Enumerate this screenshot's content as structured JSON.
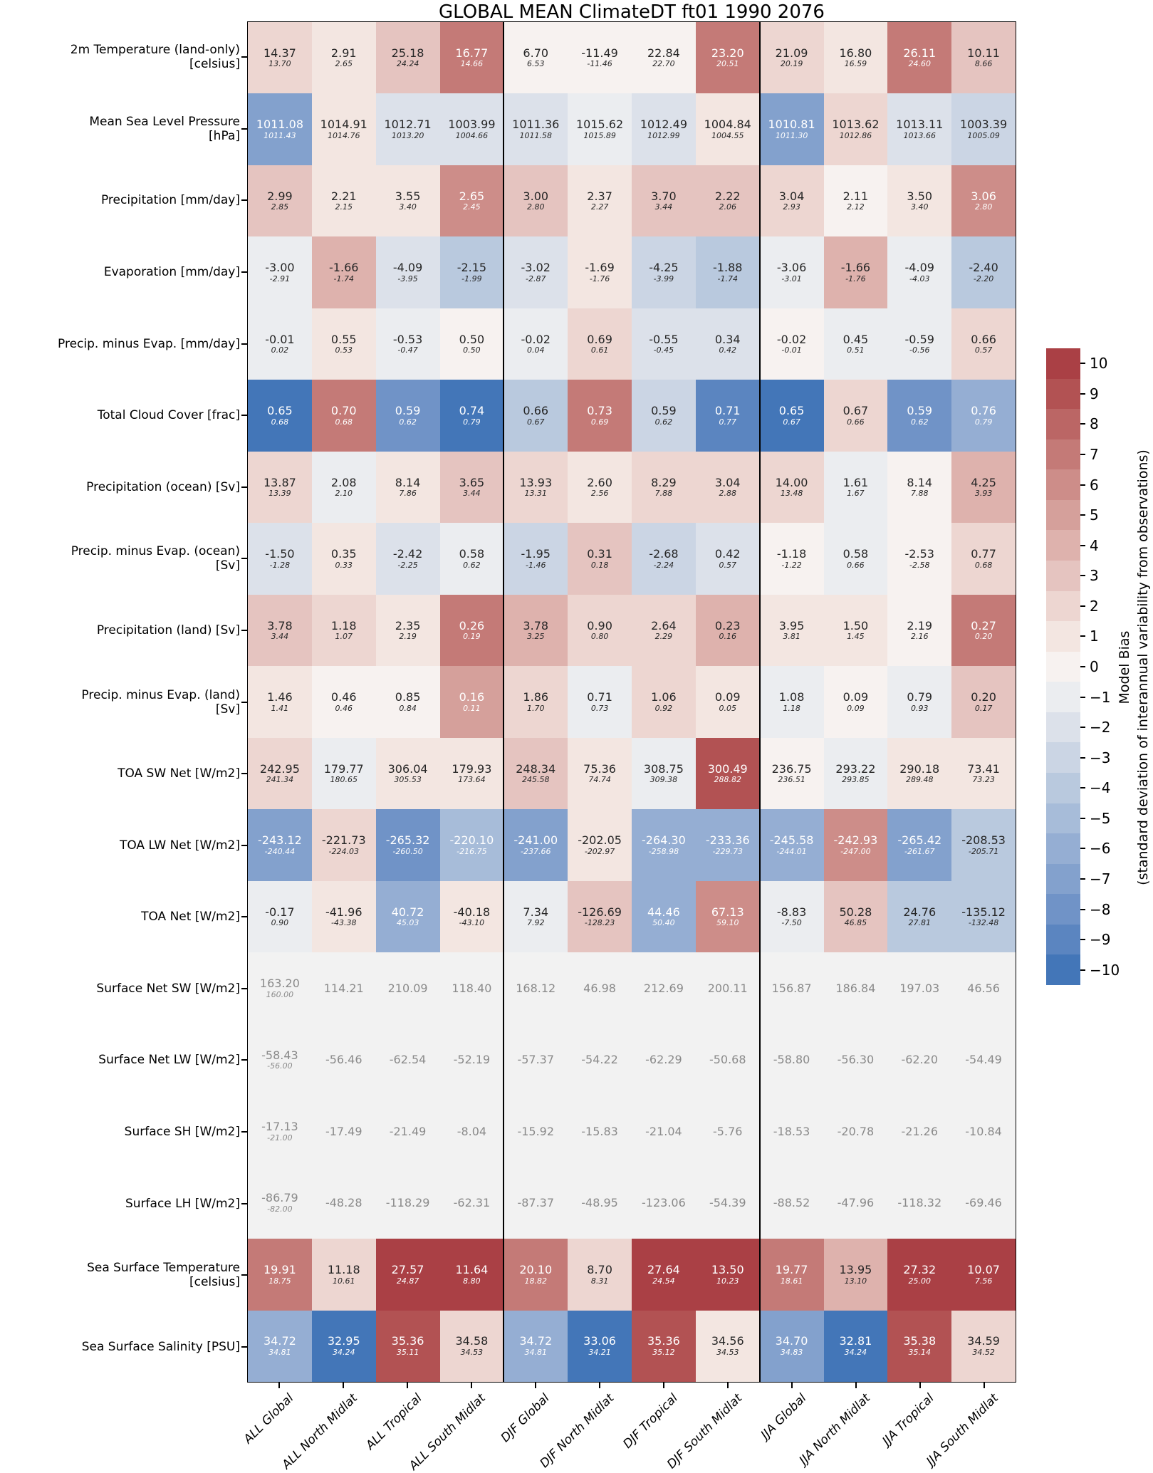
{
  "title": "GLOBAL MEAN ClimateDT ft01 1990 2076",
  "colorbar": {
    "label_line1": "Model Bias",
    "label_line2": "(standard deviation of interannual variability from observations)",
    "tick_labels": [
      "10",
      "9",
      "8",
      "7",
      "6",
      "5",
      "4",
      "3",
      "2",
      "1",
      "0",
      "−1",
      "−2",
      "−3",
      "−4",
      "−5",
      "−6",
      "−7",
      "−8",
      "−9",
      "−10"
    ],
    "palette_minus10_to_plus10": [
      "#4376b8",
      "#5b85c0",
      "#7093c7",
      "#83a1cd",
      "#95aed3",
      "#a7bcd9",
      "#b9c9de",
      "#cbd5e4",
      "#dce1ea",
      "#ebedf0",
      "#f7f2f0",
      "#f3e6e1",
      "#edd6d1",
      "#e5c4c0",
      "#deb2ad",
      "#d5a09b",
      "#cd8d89",
      "#c47a77",
      "#bb6665",
      "#b25253",
      "#aa4045"
    ],
    "text_dark": "#262626",
    "text_light": "#ffffff",
    "white_text_abs_threshold": 5
  },
  "neutral": {
    "bg": "#f2f2f2",
    "text": "#8a8a8a"
  },
  "chart_data": {
    "type": "heatmap",
    "value_range": [
      -10,
      10
    ],
    "columns": [
      "ALL Global",
      "ALL North Midlat",
      "ALL Tropical",
      "ALL South Midlat",
      "DJF Global",
      "DJF North Midlat",
      "DJF Tropical",
      "DJF South Midlat",
      "JJA Global",
      "JJA North Midlat",
      "JJA Tropical",
      "JJA South Midlat"
    ],
    "rows": [
      {
        "label": "2m Temperature (land-only)",
        "label2": "[celsius]",
        "model": [
          "14.37",
          "2.91",
          "25.18",
          "16.77",
          "6.70",
          "-11.49",
          "22.84",
          "23.20",
          "21.09",
          "16.80",
          "26.11",
          "10.11"
        ],
        "obs": [
          "13.70",
          "2.65",
          "24.24",
          "14.66",
          "6.53",
          "-11.46",
          "22.70",
          "20.51",
          "20.19",
          "16.59",
          "24.60",
          "8.66"
        ],
        "bias": [
          2,
          1,
          3,
          7,
          0,
          0,
          0,
          7,
          2,
          1,
          7,
          3
        ]
      },
      {
        "label": "Mean Sea Level Pressure",
        "label2": "[hPa]",
        "model": [
          "1011.08",
          "1014.91",
          "1012.71",
          "1003.99",
          "1011.36",
          "1015.62",
          "1012.49",
          "1004.84",
          "1010.81",
          "1013.62",
          "1013.11",
          "1003.39"
        ],
        "obs": [
          "1011.43",
          "1014.76",
          "1013.20",
          "1004.66",
          "1011.58",
          "1015.89",
          "1012.99",
          "1004.55",
          "1011.30",
          "1012.86",
          "1013.66",
          "1005.09"
        ],
        "bias": [
          -7,
          1,
          -2,
          -2,
          -2,
          -1,
          -2,
          1,
          -7,
          2,
          -2,
          -3
        ]
      },
      {
        "label": "Precipitation [mm/day]",
        "model": [
          "2.99",
          "2.21",
          "3.55",
          "2.65",
          "3.00",
          "2.37",
          "3.70",
          "2.22",
          "3.04",
          "2.11",
          "3.50",
          "3.06"
        ],
        "obs": [
          "2.85",
          "2.15",
          "3.40",
          "2.45",
          "2.80",
          "2.27",
          "3.44",
          "2.06",
          "2.93",
          "2.12",
          "3.40",
          "2.80"
        ],
        "bias": [
          3,
          1,
          1,
          6,
          3,
          1,
          3,
          3,
          2,
          0,
          1,
          6
        ]
      },
      {
        "label": "Evaporation [mm/day]",
        "model": [
          "-3.00",
          "-1.66",
          "-4.09",
          "-2.15",
          "-3.02",
          "-1.69",
          "-4.25",
          "-1.88",
          "-3.06",
          "-1.66",
          "-4.09",
          "-2.40"
        ],
        "obs": [
          "-2.91",
          "-1.74",
          "-3.95",
          "-1.99",
          "-2.87",
          "-1.76",
          "-3.99",
          "-1.74",
          "-3.01",
          "-1.76",
          "-4.03",
          "-2.20"
        ],
        "bias": [
          -1,
          4,
          -2,
          -4,
          -2,
          1,
          -3,
          -4,
          -1,
          4,
          -1,
          -4
        ]
      },
      {
        "label": "Precip. minus Evap. [mm/day]",
        "model": [
          "-0.01",
          "0.55",
          "-0.53",
          "0.50",
          "-0.02",
          "0.69",
          "-0.55",
          "0.34",
          "-0.02",
          "0.45",
          "-0.59",
          "0.66"
        ],
        "obs": [
          "0.02",
          "0.53",
          "-0.47",
          "0.50",
          "0.04",
          "0.61",
          "-0.45",
          "0.42",
          "-0.01",
          "0.51",
          "-0.56",
          "0.57"
        ],
        "bias": [
          -1,
          1,
          -1,
          0,
          -1,
          2,
          -2,
          -2,
          0,
          -1,
          -1,
          2
        ]
      },
      {
        "label": "Total Cloud Cover [frac]",
        "model": [
          "0.65",
          "0.70",
          "0.59",
          "0.74",
          "0.66",
          "0.73",
          "0.59",
          "0.71",
          "0.65",
          "0.67",
          "0.59",
          "0.76"
        ],
        "obs": [
          "0.68",
          "0.68",
          "0.62",
          "0.79",
          "0.67",
          "0.69",
          "0.62",
          "0.77",
          "0.67",
          "0.66",
          "0.62",
          "0.79"
        ],
        "bias": [
          -10,
          7,
          -8,
          -10,
          -4,
          7,
          -3,
          -9,
          -10,
          2,
          -8,
          -6
        ]
      },
      {
        "label": "Precipitation (ocean) [Sv]",
        "model": [
          "13.87",
          "2.08",
          "8.14",
          "3.65",
          "13.93",
          "2.60",
          "8.29",
          "3.04",
          "14.00",
          "1.61",
          "8.14",
          "4.25"
        ],
        "obs": [
          "13.39",
          "2.10",
          "7.86",
          "3.44",
          "13.31",
          "2.56",
          "7.88",
          "2.88",
          "13.48",
          "1.67",
          "7.88",
          "3.93"
        ],
        "bias": [
          2,
          -1,
          1,
          3,
          2,
          1,
          2,
          2,
          2,
          -1,
          0,
          4
        ]
      },
      {
        "label": "Precip. minus Evap. (ocean)",
        "label2": "[Sv]",
        "model": [
          "-1.50",
          "0.35",
          "-2.42",
          "0.58",
          "-1.95",
          "0.31",
          "-2.68",
          "0.42",
          "-1.18",
          "0.58",
          "-2.53",
          "0.77"
        ],
        "obs": [
          "-1.28",
          "0.33",
          "-2.25",
          "0.62",
          "-1.46",
          "0.18",
          "-2.24",
          "0.57",
          "-1.22",
          "0.66",
          "-2.58",
          "0.68"
        ],
        "bias": [
          -2,
          1,
          -2,
          -1,
          -3,
          3,
          -3,
          -2,
          0,
          -1,
          0,
          2
        ]
      },
      {
        "label": "Precipitation (land) [Sv]",
        "model": [
          "3.78",
          "1.18",
          "2.35",
          "0.26",
          "3.78",
          "0.90",
          "2.64",
          "0.23",
          "3.95",
          "1.50",
          "2.19",
          "0.27"
        ],
        "obs": [
          "3.44",
          "1.07",
          "2.19",
          "0.19",
          "3.25",
          "0.80",
          "2.29",
          "0.16",
          "3.81",
          "1.45",
          "2.16",
          "0.20"
        ],
        "bias": [
          3,
          2,
          1,
          7,
          4,
          2,
          2,
          4,
          1,
          1,
          0,
          7
        ]
      },
      {
        "label": "Precip. minus Evap. (land)",
        "label2": "[Sv]",
        "model": [
          "1.46",
          "0.46",
          "0.85",
          "0.16",
          "1.86",
          "0.71",
          "1.06",
          "0.09",
          "1.08",
          "0.09",
          "0.79",
          "0.20"
        ],
        "obs": [
          "1.41",
          "0.46",
          "0.84",
          "0.11",
          "1.70",
          "0.73",
          "0.92",
          "0.05",
          "1.18",
          "0.09",
          "0.93",
          "0.17"
        ],
        "bias": [
          1,
          0,
          0,
          5,
          2,
          -1,
          2,
          1,
          -1,
          0,
          -1,
          3
        ]
      },
      {
        "label": "TOA SW Net [W/m2]",
        "model": [
          "242.95",
          "179.77",
          "306.04",
          "179.93",
          "248.34",
          "75.36",
          "308.75",
          "300.49",
          "236.75",
          "293.22",
          "290.18",
          "73.41"
        ],
        "obs": [
          "241.34",
          "180.65",
          "305.53",
          "173.64",
          "245.58",
          "74.74",
          "309.38",
          "288.82",
          "236.51",
          "293.85",
          "289.48",
          "73.23"
        ],
        "bias": [
          2,
          -1,
          1,
          1,
          3,
          1,
          -1,
          9,
          0,
          -1,
          1,
          1
        ]
      },
      {
        "label": "TOA LW Net [W/m2]",
        "model": [
          "-243.12",
          "-221.73",
          "-265.32",
          "-220.10",
          "-241.00",
          "-202.05",
          "-264.30",
          "-233.36",
          "-245.58",
          "-242.93",
          "-265.42",
          "-208.53"
        ],
        "obs": [
          "-240.44",
          "-224.03",
          "-260.50",
          "-216.75",
          "-237.66",
          "-202.97",
          "-258.98",
          "-229.73",
          "-244.01",
          "-247.00",
          "-261.67",
          "-205.71"
        ],
        "bias": [
          -7,
          2,
          -8,
          -5,
          -7,
          1,
          -6,
          -6,
          -6,
          6,
          -7,
          -4
        ]
      },
      {
        "label": "TOA Net [W/m2]",
        "model": [
          "-0.17",
          "-41.96",
          "40.72",
          "-40.18",
          "7.34",
          "-126.69",
          "44.46",
          "67.13",
          "-8.83",
          "50.28",
          "24.76",
          "-135.12"
        ],
        "obs": [
          "0.90",
          "-43.38",
          "45.03",
          "-43.10",
          "7.92",
          "-128.23",
          "50.40",
          "59.10",
          "-7.50",
          "46.85",
          "27.81",
          "-132.48"
        ],
        "bias": [
          -1,
          1,
          -6,
          1,
          -1,
          3,
          -6,
          6,
          -1,
          3,
          -4,
          -4
        ]
      },
      {
        "label": "Surface Net SW [W/m2]",
        "model": [
          "163.20",
          "114.21",
          "210.09",
          "118.40",
          "168.12",
          "46.98",
          "212.69",
          "200.11",
          "156.87",
          "186.84",
          "197.03",
          "46.56"
        ],
        "obs": [
          "160.00",
          null,
          null,
          null,
          null,
          null,
          null,
          null,
          null,
          null,
          null,
          null
        ],
        "bias": null
      },
      {
        "label": "Surface Net LW [W/m2]",
        "model": [
          "-58.43",
          "-56.46",
          "-62.54",
          "-52.19",
          "-57.37",
          "-54.22",
          "-62.29",
          "-50.68",
          "-58.80",
          "-56.30",
          "-62.20",
          "-54.49"
        ],
        "obs": [
          "-56.00",
          null,
          null,
          null,
          null,
          null,
          null,
          null,
          null,
          null,
          null,
          null
        ],
        "bias": null
      },
      {
        "label": "Surface SH [W/m2]",
        "model": [
          "-17.13",
          "-17.49",
          "-21.49",
          "-8.04",
          "-15.92",
          "-15.83",
          "-21.04",
          "-5.76",
          "-18.53",
          "-20.78",
          "-21.26",
          "-10.84"
        ],
        "obs": [
          "-21.00",
          null,
          null,
          null,
          null,
          null,
          null,
          null,
          null,
          null,
          null,
          null
        ],
        "bias": null
      },
      {
        "label": "Surface LH [W/m2]",
        "model": [
          "-86.79",
          "-48.28",
          "-118.29",
          "-62.31",
          "-87.37",
          "-48.95",
          "-123.06",
          "-54.39",
          "-88.52",
          "-47.96",
          "-118.32",
          "-69.46"
        ],
        "obs": [
          "-82.00",
          null,
          null,
          null,
          null,
          null,
          null,
          null,
          null,
          null,
          null,
          null
        ],
        "bias": null
      },
      {
        "label": "Sea Surface Temperature",
        "label2": "[celsius]",
        "model": [
          "19.91",
          "11.18",
          "27.57",
          "11.64",
          "20.10",
          "8.70",
          "27.64",
          "13.50",
          "19.77",
          "13.95",
          "27.32",
          "10.07"
        ],
        "obs": [
          "18.75",
          "10.61",
          "24.87",
          "8.80",
          "18.82",
          "8.31",
          "24.54",
          "10.23",
          "18.61",
          "13.10",
          "25.00",
          "7.56"
        ],
        "bias": [
          7,
          2,
          10,
          10,
          7,
          2,
          10,
          10,
          7,
          4,
          10,
          10
        ]
      },
      {
        "label": "Sea Surface Salinity [PSU]",
        "model": [
          "34.72",
          "32.95",
          "35.36",
          "34.58",
          "34.72",
          "33.06",
          "35.36",
          "34.56",
          "34.70",
          "32.81",
          "35.38",
          "34.59"
        ],
        "obs": [
          "34.81",
          "34.24",
          "35.11",
          "34.53",
          "34.81",
          "34.21",
          "35.12",
          "34.53",
          "34.83",
          "34.24",
          "35.14",
          "34.52"
        ],
        "bias": [
          -6,
          -10,
          9,
          2,
          -6,
          -10,
          9,
          1,
          -7,
          -10,
          9,
          2
        ]
      }
    ]
  }
}
